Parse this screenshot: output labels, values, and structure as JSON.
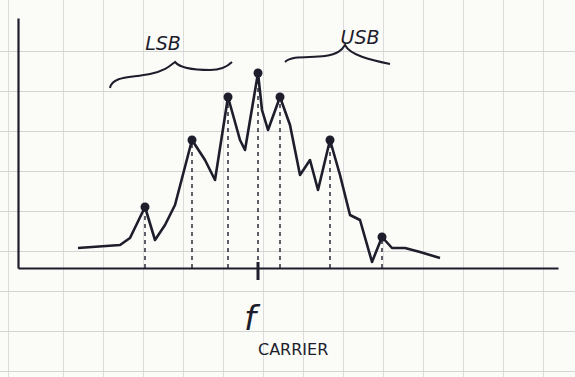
{
  "chart_data": {
    "type": "line",
    "annotations": [
      "LSB",
      "USB"
    ],
    "carrier_label": {
      "text": "f",
      "subscript": "CARRIER"
    },
    "xlim": [
      -240,
      300
    ],
    "ylim": [
      0,
      250
    ],
    "tick_labels": false,
    "grid": false,
    "series": [
      {
        "type": "line",
        "color": "#1d1d2b",
        "line_style": "solid",
        "x": [
          -180,
          -138,
          -128,
          -113,
          -103,
          -93,
          -83,
          -66,
          -53,
          -43,
          -30,
          -18,
          -13,
          0,
          4,
          10,
          22,
          32,
          42,
          52,
          60,
          72,
          82,
          92,
          102,
          114,
          124,
          134,
          147,
          162,
          182
        ],
        "values": [
          20,
          23,
          30,
          61,
          28,
          43,
          63,
          128,
          108,
          88,
          171,
          128,
          118,
          195,
          158,
          138,
          171,
          143,
          93,
          108,
          78,
          128,
          93,
          53,
          48,
          6,
          31,
          20,
          20,
          16,
          10
        ]
      },
      {
        "type": "stem",
        "color": "#1d1d2b",
        "line_style": "dashed",
        "marker": "dot",
        "x": [
          -113,
          -66,
          -30,
          0,
          22,
          72,
          124
        ],
        "values": [
          61,
          128,
          171,
          195,
          171,
          128,
          31
        ]
      }
    ]
  }
}
